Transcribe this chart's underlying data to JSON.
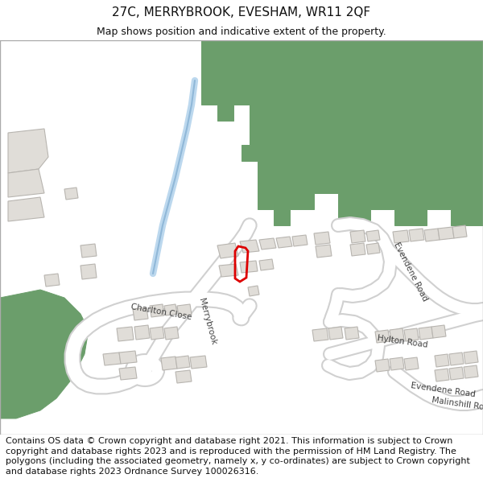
{
  "title_line1": "27C, MERRYBROOK, EVESHAM, WR11 2QF",
  "title_line2": "Map shows position and indicative extent of the property.",
  "footer_text": "Contains OS data © Crown copyright and database right 2021. This information is subject to Crown copyright and database rights 2023 and is reproduced with the permission of HM Land Registry. The polygons (including the associated geometry, namely x, y co-ordinates) are subject to Crown copyright and database rights 2023 Ordnance Survey 100026316.",
  "title_fontsize": 11,
  "footer_fontsize": 8,
  "map_bg_color": "#ffffff",
  "green_color": "#6b9e6b",
  "road_fill": "#ffffff",
  "road_outline": "#d0d0d0",
  "building_fill": "#e0ddd8",
  "building_outline": "#b8b5b0",
  "highlight_color": "#dd0000",
  "water_color": "#bcd8ee",
  "water_outline": "#90b8d8"
}
